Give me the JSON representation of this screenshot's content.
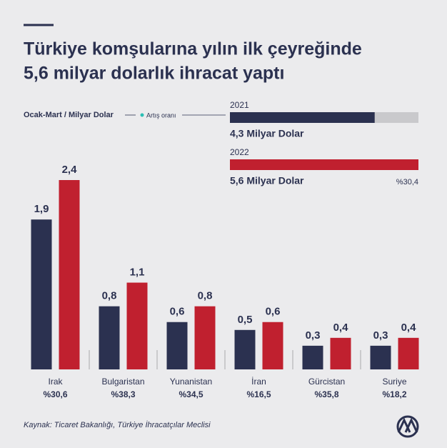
{
  "chart_data": {
    "type": "bar",
    "title": [
      "Türkiye komşularına yılın ilk çeyreğinde",
      "5,6 milyar dolarlık ihracat yaptı"
    ],
    "subtitle": "Ocak-Mart / Milyar Dolar",
    "growth_legend": "Artış oranı",
    "growth_color": "#2bbfb5",
    "summary": {
      "xlim": [
        0,
        5.6
      ],
      "series": [
        {
          "name": "2021",
          "color": "#2b3150",
          "value": 4.3,
          "value_label": "4,3 Milyar Dolar"
        },
        {
          "name": "2022",
          "color": "#c0202f",
          "value": 5.6,
          "value_label": "5,6 Milyar Dolar"
        }
      ],
      "growth": {
        "value": 30.4,
        "label": "%30,4"
      }
    },
    "categories": [
      "Irak",
      "Bulgaristan",
      "Yunanistan",
      "İran",
      "Gürcistan",
      "Suriye"
    ],
    "series": [
      {
        "name": "2021",
        "color": "#2b3150",
        "values": [
          1.9,
          0.8,
          0.6,
          0.5,
          0.3,
          0.3
        ],
        "value_labels": [
          "1,9",
          "0,8",
          "0,6",
          "0,5",
          "0,3",
          "0,3"
        ]
      },
      {
        "name": "2022",
        "color": "#c0202f",
        "values": [
          2.4,
          1.1,
          0.8,
          0.6,
          0.4,
          0.4
        ],
        "value_labels": [
          "2,4",
          "1,1",
          "0,8",
          "0,6",
          "0,4",
          "0,4"
        ]
      }
    ],
    "growth": [
      {
        "value": 30.6,
        "label": "%30,6"
      },
      {
        "value": 38.3,
        "label": "%38,3"
      },
      {
        "value": 34.5,
        "label": "%34,5"
      },
      {
        "value": 16.5,
        "label": "%16,5"
      },
      {
        "value": 35.8,
        "label": "%35,8"
      },
      {
        "value": 18.2,
        "label": "%18,2"
      }
    ],
    "ylim": [
      0,
      2.4
    ],
    "source": "Kaynak: Ticaret Bakanlığı, Türkiye İhracatçılar Meclisi"
  }
}
